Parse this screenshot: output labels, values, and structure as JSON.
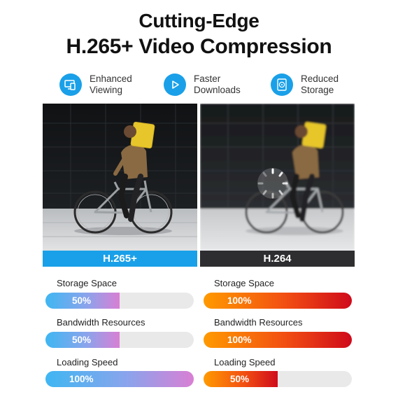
{
  "header": {
    "title_line1": "Cutting-Edge",
    "title_line2": "H.265+ Video Compression"
  },
  "features": [
    {
      "label_line1": "Enhanced",
      "label_line2": "Viewing",
      "icon": "monitor-icon"
    },
    {
      "label_line1": "Faster",
      "label_line2": "Downloads",
      "icon": "play-icon"
    },
    {
      "label_line1": "Reduced",
      "label_line2": "Storage",
      "icon": "storage-disk-icon"
    }
  ],
  "comparison": [
    {
      "codec": "H.265+",
      "caption_color": "#1aa0e8",
      "metrics": [
        {
          "label": "Storage Space",
          "value_text": "50%",
          "fraction": 0.5
        },
        {
          "label": "Bandwidth Resources",
          "value_text": "50%",
          "fraction": 0.5
        },
        {
          "label": "Loading Speed",
          "value_text": "100%",
          "fraction": 1.0
        }
      ]
    },
    {
      "codec": "H.264",
      "caption_color": "#2e2e30",
      "metrics": [
        {
          "label": "Storage Space",
          "value_text": "100%",
          "fraction": 1.0
        },
        {
          "label": "Bandwidth Resources",
          "value_text": "100%",
          "fraction": 1.0
        },
        {
          "label": "Loading Speed",
          "value_text": "50%",
          "fraction": 0.5
        }
      ]
    }
  ],
  "colors": {
    "accent_blue": "#1aa0e8",
    "dark_caption": "#2e2e30",
    "orange": "#ff9a00",
    "red": "#cf0a1a",
    "track": "#e9e9ea"
  }
}
